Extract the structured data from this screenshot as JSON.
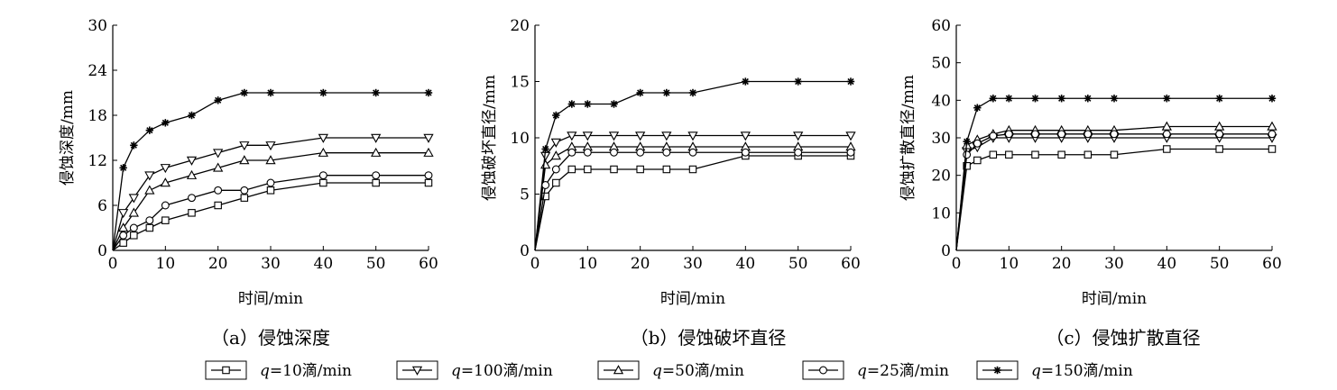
{
  "figure": {
    "legend_position": "bottom",
    "series": [
      {
        "key": "q10",
        "name": "q=10滴/min",
        "q": "q",
        "rest": "=10滴/min",
        "marker": "square"
      },
      {
        "key": "q100",
        "name": "q=100滴/min",
        "q": "q",
        "rest": "=100滴/min",
        "marker": "triangle-down"
      },
      {
        "key": "q50",
        "name": "q=50滴/min",
        "q": "q",
        "rest": "=50滴/min",
        "marker": "triangle-up"
      },
      {
        "key": "q25",
        "name": "q=25滴/min",
        "q": "q",
        "rest": "=25滴/min",
        "marker": "circle"
      },
      {
        "key": "q150",
        "name": "q=150滴/min",
        "q": "q",
        "rest": "=150滴/min",
        "marker": "star"
      }
    ]
  },
  "chart_data": [
    {
      "type": "line",
      "caption": "（a）侵蚀深度",
      "xlabel": "时间/min",
      "ylabel": "侵蚀深度/mm",
      "xlim": [
        0,
        60
      ],
      "ylim": [
        0,
        30
      ],
      "xticks": [
        0,
        10,
        20,
        30,
        40,
        50,
        60
      ],
      "yticks": [
        0,
        6,
        12,
        18,
        24,
        30
      ],
      "x": [
        0,
        2,
        4,
        7,
        10,
        15,
        20,
        25,
        30,
        40,
        50,
        60
      ],
      "series": [
        {
          "name": "q=10滴/min",
          "values": [
            0,
            1,
            2,
            3,
            4,
            5,
            6,
            7,
            8,
            9,
            9,
            9
          ]
        },
        {
          "name": "q=100滴/min",
          "values": [
            0,
            5,
            7,
            10,
            11,
            12,
            13,
            14,
            14,
            15,
            15,
            15
          ]
        },
        {
          "name": "q=50滴/min",
          "values": [
            0,
            3,
            5,
            8,
            9,
            10,
            11,
            12,
            12,
            13,
            13,
            13
          ]
        },
        {
          "name": "q=25滴/min",
          "values": [
            0,
            2,
            3,
            4,
            6,
            7,
            8,
            8,
            9,
            10,
            10,
            10
          ]
        },
        {
          "name": "q=150滴/min",
          "values": [
            0,
            11,
            14,
            16,
            17,
            18,
            20,
            21,
            21,
            21,
            21,
            21
          ]
        }
      ]
    },
    {
      "type": "line",
      "caption": "（b）侵蚀破坏直径",
      "xlabel": "时间/min",
      "ylabel": "侵蚀破坏直径/mm",
      "xlim": [
        0,
        60
      ],
      "ylim": [
        0,
        20
      ],
      "xticks": [
        0,
        10,
        20,
        30,
        40,
        50,
        60
      ],
      "yticks": [
        0,
        5,
        10,
        15,
        20
      ],
      "x": [
        0,
        2,
        4,
        7,
        10,
        15,
        20,
        25,
        30,
        40,
        50,
        60
      ],
      "series": [
        {
          "name": "q=10滴/min",
          "values": [
            0,
            4.8,
            6.0,
            7.2,
            7.2,
            7.2,
            7.2,
            7.2,
            7.2,
            8.4,
            8.4,
            8.4
          ]
        },
        {
          "name": "q=100滴/min",
          "values": [
            0,
            8.4,
            9.6,
            10.2,
            10.2,
            10.2,
            10.2,
            10.2,
            10.2,
            10.2,
            10.2,
            10.2
          ]
        },
        {
          "name": "q=50滴/min",
          "values": [
            0,
            7.6,
            8.4,
            9.2,
            9.2,
            9.2,
            9.2,
            9.2,
            9.2,
            9.2,
            9.2,
            9.2
          ]
        },
        {
          "name": "q=25滴/min",
          "values": [
            0,
            5.8,
            7.2,
            8.7,
            8.7,
            8.7,
            8.7,
            8.7,
            8.7,
            8.7,
            8.7,
            8.7
          ]
        },
        {
          "name": "q=150滴/min",
          "values": [
            0,
            9.0,
            12.0,
            13.0,
            13.0,
            13.0,
            14.0,
            14.0,
            14.0,
            15.0,
            15.0,
            15.0
          ]
        }
      ]
    },
    {
      "type": "line",
      "caption": "（c）侵蚀扩散直径",
      "xlabel": "时间/min",
      "ylabel": "侵蚀扩散直径/mm",
      "xlim": [
        0,
        60
      ],
      "ylim": [
        0,
        60
      ],
      "xticks": [
        0,
        10,
        20,
        30,
        40,
        50,
        60
      ],
      "yticks": [
        0,
        10,
        20,
        30,
        40,
        50,
        60
      ],
      "x": [
        0,
        2,
        4,
        7,
        10,
        15,
        20,
        25,
        30,
        40,
        50,
        60
      ],
      "series": [
        {
          "name": "q=10滴/min",
          "values": [
            0,
            22.5,
            24,
            25.5,
            25.5,
            25.5,
            25.5,
            25.5,
            25.5,
            27,
            27,
            27
          ]
        },
        {
          "name": "q=100滴/min",
          "values": [
            0,
            26.5,
            27.5,
            30,
            30,
            30,
            30,
            30,
            30,
            30,
            30,
            30
          ]
        },
        {
          "name": "q=50滴/min",
          "values": [
            0,
            28,
            29.5,
            31,
            32,
            32,
            32,
            32,
            32,
            33,
            33,
            33
          ]
        },
        {
          "name": "q=25滴/min",
          "values": [
            0,
            25.5,
            28.5,
            30.5,
            31,
            31,
            31,
            31,
            31,
            31,
            31,
            31
          ]
        },
        {
          "name": "q=150滴/min",
          "values": [
            0,
            29,
            38,
            40.5,
            40.5,
            40.5,
            40.5,
            40.5,
            40.5,
            40.5,
            40.5,
            40.5
          ]
        }
      ]
    }
  ]
}
